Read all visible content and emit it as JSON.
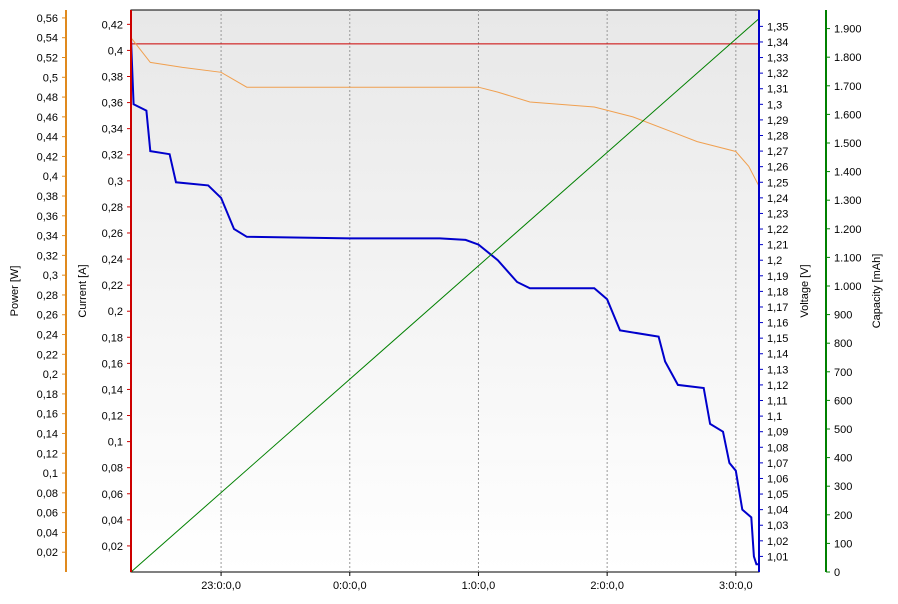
{
  "chart_data": {
    "type": "line",
    "x_ticks": [
      "23:0:0,0",
      "0:0:0,0",
      "1:0:0,0",
      "2:0:0,0",
      "3:0:0,0"
    ],
    "x_range_hours": [
      -1.7,
      3.18
    ],
    "axes": {
      "power": {
        "label": "Power [W]",
        "color": "#e08a1e",
        "range": [
          0,
          0.568
        ],
        "ticks": [
          "0,02",
          "0,04",
          "0,06",
          "0,08",
          "0,1",
          "0,12",
          "0,14",
          "0,16",
          "0,18",
          "0,2",
          "0,22",
          "0,24",
          "0,26",
          "0,28",
          "0,3",
          "0,32",
          "0,34",
          "0,36",
          "0,38",
          "0,4",
          "0,42",
          "0,44",
          "0,46",
          "0,48",
          "0,5",
          "0,52",
          "0,54",
          "0,56"
        ]
      },
      "current": {
        "label": "Current [A]",
        "color": "#cc0000",
        "range": [
          0,
          0.431
        ],
        "ticks": [
          "0,02",
          "0,04",
          "0,06",
          "0,08",
          "0,1",
          "0,12",
          "0,14",
          "0,16",
          "0,18",
          "0,2",
          "0,22",
          "0,24",
          "0,26",
          "0,28",
          "0,3",
          "0,32",
          "0,34",
          "0,36",
          "0,38",
          "0,4",
          "0,42"
        ]
      },
      "voltage": {
        "label": "Voltage [V]",
        "color": "#0000c8",
        "range": [
          1.0,
          1.3605
        ],
        "ticks": [
          "1,01",
          "1,02",
          "1,03",
          "1,04",
          "1,05",
          "1,06",
          "1,07",
          "1,08",
          "1,09",
          "1,1",
          "1,11",
          "1,12",
          "1,13",
          "1,14",
          "1,15",
          "1,16",
          "1,17",
          "1,18",
          "1,19",
          "1,2",
          "1,21",
          "1,22",
          "1,23",
          "1,24",
          "1,25",
          "1,26",
          "1,27",
          "1,28",
          "1,29",
          "1,3",
          "1,31",
          "1,32",
          "1,33",
          "1,34",
          "1,35"
        ]
      },
      "capacity": {
        "label": "Capacity [mAh]",
        "color": "#008000",
        "range": [
          0,
          1965
        ],
        "ticks": [
          "0",
          "100",
          "200",
          "300",
          "400",
          "500",
          "600",
          "700",
          "800",
          "900",
          "1.000",
          "1.100",
          "1.200",
          "1.300",
          "1.400",
          "1.500",
          "1.600",
          "1.700",
          "1.800",
          "1.900"
        ]
      }
    },
    "series": [
      {
        "name": "Current",
        "axis": "current",
        "color": "#cc0000",
        "points": [
          [
            -1.7,
            0.405
          ],
          [
            3.18,
            0.405
          ]
        ]
      },
      {
        "name": "Power",
        "axis": "power",
        "color": "#f0a050",
        "points": [
          [
            -1.7,
            0.54
          ],
          [
            -1.55,
            0.515
          ],
          [
            -1.3,
            0.51
          ],
          [
            -1.0,
            0.505
          ],
          [
            -0.8,
            0.49
          ],
          [
            0,
            0.49
          ],
          [
            1.0,
            0.49
          ],
          [
            1.15,
            0.485
          ],
          [
            1.4,
            0.475
          ],
          [
            1.9,
            0.47
          ],
          [
            2.2,
            0.46
          ],
          [
            2.5,
            0.445
          ],
          [
            2.7,
            0.435
          ],
          [
            3.0,
            0.425
          ],
          [
            3.1,
            0.41
          ],
          [
            3.18,
            0.39
          ]
        ]
      },
      {
        "name": "Voltage",
        "axis": "voltage",
        "color": "#0000cc",
        "points": [
          [
            -1.7,
            1.342
          ],
          [
            -1.68,
            1.3
          ],
          [
            -1.58,
            1.296
          ],
          [
            -1.55,
            1.27
          ],
          [
            -1.4,
            1.268
          ],
          [
            -1.35,
            1.25
          ],
          [
            -1.1,
            1.248
          ],
          [
            -1.0,
            1.24
          ],
          [
            -0.9,
            1.22
          ],
          [
            -0.8,
            1.215
          ],
          [
            0,
            1.214
          ],
          [
            0.7,
            1.214
          ],
          [
            0.9,
            1.213
          ],
          [
            1.0,
            1.21
          ],
          [
            1.15,
            1.2
          ],
          [
            1.3,
            1.186
          ],
          [
            1.4,
            1.182
          ],
          [
            1.9,
            1.182
          ],
          [
            2.0,
            1.175
          ],
          [
            2.1,
            1.155
          ],
          [
            2.4,
            1.151
          ],
          [
            2.45,
            1.135
          ],
          [
            2.55,
            1.12
          ],
          [
            2.75,
            1.118
          ],
          [
            2.8,
            1.095
          ],
          [
            2.9,
            1.09
          ],
          [
            2.95,
            1.07
          ],
          [
            3.0,
            1.065
          ],
          [
            3.05,
            1.04
          ],
          [
            3.12,
            1.035
          ],
          [
            3.14,
            1.01
          ],
          [
            3.16,
            1.005
          ],
          [
            3.18,
            1.005
          ]
        ]
      },
      {
        "name": "Capacity",
        "axis": "capacity",
        "color": "#008000",
        "points": [
          [
            -1.7,
            0
          ],
          [
            3.18,
            1935
          ]
        ]
      }
    ],
    "grid": "vertical dashed lines at x ticks"
  }
}
